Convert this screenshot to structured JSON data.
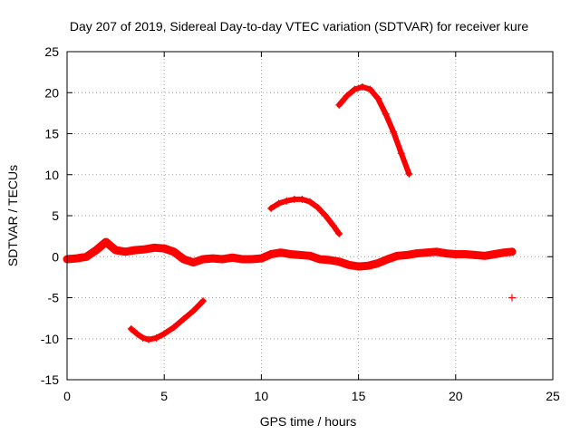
{
  "chart_data": {
    "type": "scatter",
    "title": "Day 207 of 2019, Sidereal Day-to-day VTEC variation (SDTVAR) for receiver kure",
    "xlabel": "GPS time / hours",
    "ylabel": "SDTVAR / TECUs",
    "xlim": [
      0,
      25
    ],
    "ylim": [
      -15,
      25
    ],
    "xticks": [
      0,
      5,
      10,
      15,
      20,
      25
    ],
    "yticks": [
      -15,
      -10,
      -5,
      0,
      5,
      10,
      15,
      20,
      25
    ],
    "grid": true,
    "marker": "+",
    "color": "#ff0000",
    "series": [
      {
        "name": "baseline",
        "points": [
          [
            0,
            -0.3
          ],
          [
            0.5,
            -0.2
          ],
          [
            1,
            0
          ],
          [
            1.5,
            0.8
          ],
          [
            2,
            1.8
          ],
          [
            2.5,
            0.8
          ],
          [
            3,
            0.6
          ],
          [
            3.5,
            0.8
          ],
          [
            4,
            0.9
          ],
          [
            4.5,
            1.1
          ],
          [
            5,
            1.0
          ],
          [
            5.5,
            0.6
          ],
          [
            6,
            -0.3
          ],
          [
            6.5,
            -0.7
          ],
          [
            7,
            -0.3
          ],
          [
            7.5,
            -0.2
          ],
          [
            8,
            -0.3
          ],
          [
            8.5,
            -0.1
          ],
          [
            9,
            -0.3
          ],
          [
            9.5,
            -0.3
          ],
          [
            10,
            -0.2
          ],
          [
            10.5,
            0.3
          ],
          [
            11,
            0.5
          ],
          [
            11.5,
            0.3
          ],
          [
            12,
            0.2
          ],
          [
            12.5,
            0.1
          ],
          [
            13,
            -0.3
          ],
          [
            13.5,
            -0.4
          ],
          [
            14,
            -0.6
          ],
          [
            14.5,
            -1.0
          ],
          [
            15,
            -1.2
          ],
          [
            15.5,
            -1.1
          ],
          [
            16,
            -0.8
          ],
          [
            16.5,
            -0.3
          ],
          [
            17,
            0.1
          ],
          [
            17.5,
            0.2
          ],
          [
            18,
            0.4
          ],
          [
            18.5,
            0.5
          ],
          [
            19,
            0.6
          ],
          [
            19.5,
            0.4
          ],
          [
            20,
            0.3
          ],
          [
            20.5,
            0.3
          ],
          [
            21,
            0.2
          ],
          [
            21.5,
            0.1
          ],
          [
            22,
            0.3
          ],
          [
            22.5,
            0.5
          ],
          [
            22.9,
            0.6
          ]
        ]
      },
      {
        "name": "segment-negative",
        "points": [
          [
            3.3,
            -8.8
          ],
          [
            3.6,
            -9.4
          ],
          [
            3.9,
            -9.9
          ],
          [
            4.2,
            -10.1
          ],
          [
            4.6,
            -9.9
          ],
          [
            5.0,
            -9.4
          ],
          [
            5.5,
            -8.6
          ],
          [
            6.0,
            -7.6
          ],
          [
            6.5,
            -6.6
          ],
          [
            7.0,
            -5.4
          ]
        ]
      },
      {
        "name": "segment-mid",
        "points": [
          [
            10.5,
            5.9
          ],
          [
            10.9,
            6.5
          ],
          [
            11.3,
            6.8
          ],
          [
            11.7,
            7.0
          ],
          [
            12.1,
            7.0
          ],
          [
            12.5,
            6.7
          ],
          [
            12.9,
            6.0
          ],
          [
            13.3,
            5.0
          ],
          [
            13.7,
            3.8
          ],
          [
            14.0,
            2.8
          ]
        ]
      },
      {
        "name": "segment-high",
        "points": [
          [
            14.0,
            18.5
          ],
          [
            14.4,
            19.6
          ],
          [
            14.8,
            20.4
          ],
          [
            15.2,
            20.7
          ],
          [
            15.6,
            20.4
          ],
          [
            16.0,
            19.3
          ],
          [
            16.4,
            17.4
          ],
          [
            16.8,
            15.2
          ],
          [
            17.2,
            12.6
          ],
          [
            17.6,
            10.1
          ]
        ]
      },
      {
        "name": "outlier",
        "points": [
          [
            22.9,
            -5.0
          ]
        ]
      }
    ]
  }
}
